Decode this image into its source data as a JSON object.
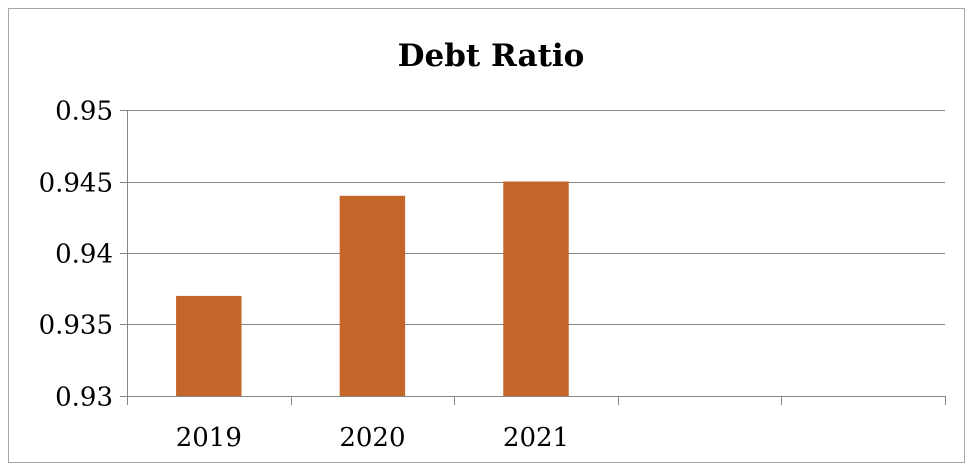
{
  "chart_data": {
    "type": "bar",
    "title": "Debt Ratio",
    "xlabel": "",
    "ylabel": "",
    "categories": [
      "2019",
      "2020",
      "2021",
      "",
      ""
    ],
    "values": [
      0.937,
      0.944,
      0.945,
      null,
      null
    ],
    "ylim": [
      0.93,
      0.95
    ],
    "yticks": [
      "0.93",
      "0.935",
      "0.94",
      "0.945",
      "0.95"
    ],
    "grid": true,
    "legend": "none",
    "bar_color": "#c4652a"
  }
}
